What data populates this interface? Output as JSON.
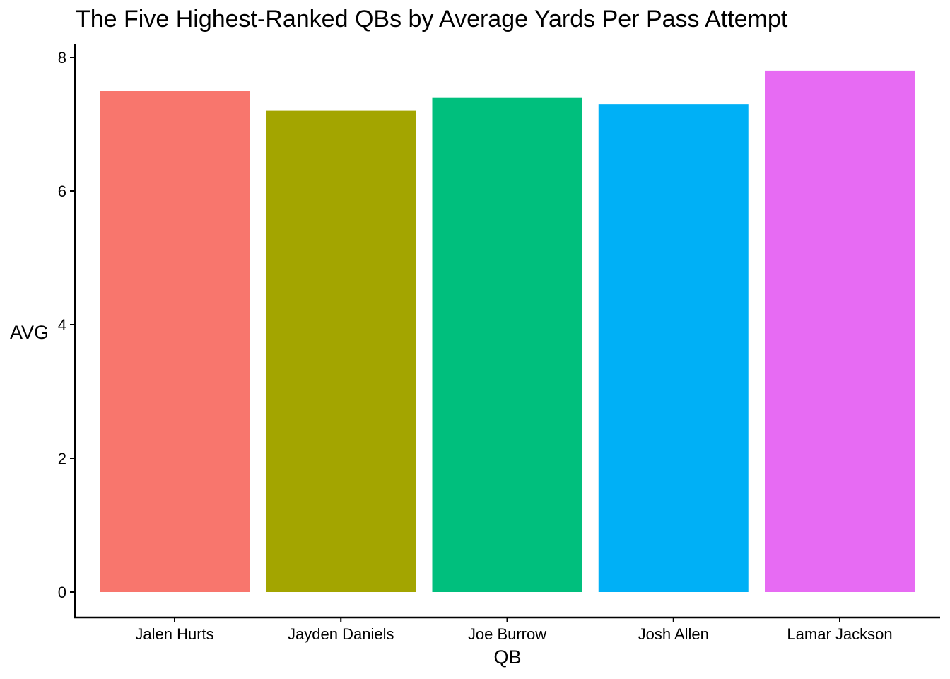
{
  "chart_data": {
    "type": "bar",
    "title": "The Five Highest-Ranked QBs by Average Yards Per Pass Attempt",
    "xlabel": "QB",
    "ylabel": "AVG",
    "categories": [
      "Jalen Hurts",
      "Jayden Daniels",
      "Joe Burrow",
      "Josh Allen",
      "Lamar Jackson"
    ],
    "values": [
      7.5,
      7.2,
      7.4,
      7.3,
      7.8
    ],
    "colors": [
      "#F8766D",
      "#A3A500",
      "#00BF7D",
      "#00B0F6",
      "#E76BF3"
    ],
    "ylim": [
      0,
      8
    ],
    "yticks": [
      0,
      2,
      4,
      6,
      8
    ],
    "grid": false,
    "legend": "none"
  }
}
